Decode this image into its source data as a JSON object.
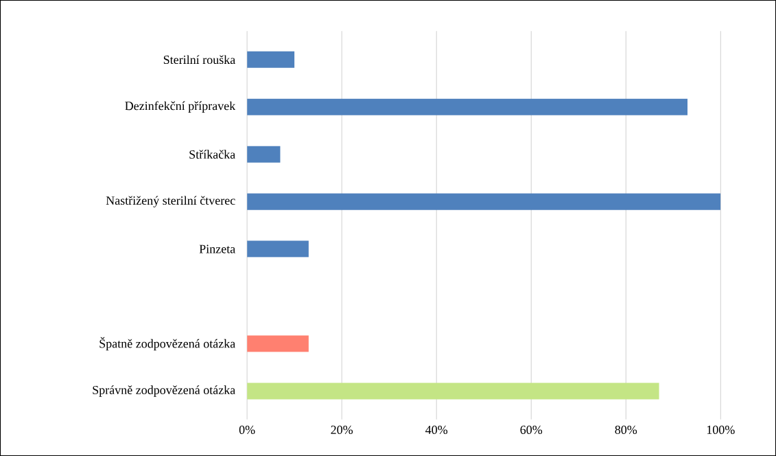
{
  "chart_data": {
    "type": "bar",
    "orientation": "horizontal",
    "categories": [
      "Sterilní rouška",
      "Dezinfekční přípravek",
      "Stříkačka",
      "Nastřižený sterilní čtverec",
      "Pinzeta",
      null,
      "Špatně zodpovězená otázka",
      "Správně zodpovězená otázka"
    ],
    "values": [
      10,
      93,
      7,
      100,
      13,
      null,
      13,
      87
    ],
    "colors": [
      "#4f81bd",
      "#4f81bd",
      "#4f81bd",
      "#4f81bd",
      "#4f81bd",
      "#4f81bd",
      "#ff8070",
      "#c4e585"
    ],
    "xlim": [
      0,
      100
    ],
    "xticks": [
      {
        "value": 0,
        "label": "0%"
      },
      {
        "value": 20,
        "label": "20%"
      },
      {
        "value": 40,
        "label": "40%"
      },
      {
        "value": 60,
        "label": "60%"
      },
      {
        "value": 80,
        "label": "80%"
      },
      {
        "value": 100,
        "label": "100%"
      }
    ],
    "grid": "x"
  }
}
